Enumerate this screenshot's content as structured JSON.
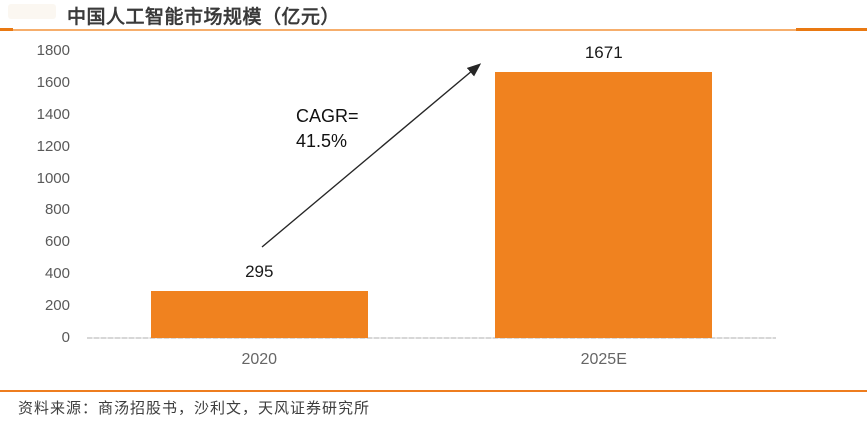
{
  "header": {
    "title": "中国人工智能市场规模（亿元）"
  },
  "annotation": {
    "line1": "CAGR=",
    "line2": "41.5%"
  },
  "footer": {
    "source": "资料来源：商汤招股书，沙利文，天风证券研究所"
  },
  "colors": {
    "bar": "#f0821f",
    "top_rule": "#f6ae6c",
    "top_rule_accent": "#e97912",
    "bottom_rule": "#ee7d1f",
    "axis_line": "#d7d7d7",
    "tick_text": "#595959",
    "category_text": "#666666",
    "value_text": "#1a1a1a",
    "title_text": "#3a3a3a",
    "arrow": "#262626"
  },
  "chart_data": {
    "type": "bar",
    "title": "中国人工智能市场规模（亿元）",
    "unit": "亿元",
    "categories": [
      "2020",
      "2025E"
    ],
    "values": [
      295,
      1671
    ],
    "ylim": [
      0,
      1800
    ],
    "ytick_step": 200,
    "grid": false,
    "legend_position": "none",
    "annotation": "CAGR=41.5%"
  }
}
